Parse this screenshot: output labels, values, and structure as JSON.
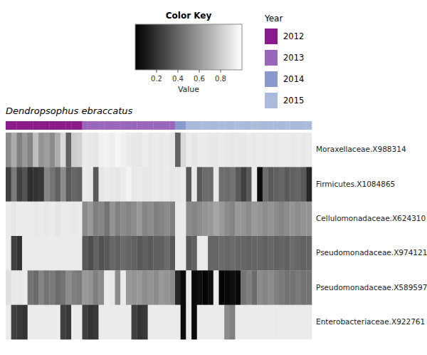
{
  "chart_data": {
    "type": "heatmap",
    "subtitle": "Dendropsophus ebraccatus",
    "rows": [
      "Moraxellaceae.X988314",
      "Firmicutes.X1084865",
      "Cellulomonadaceae.X624310",
      "Pseudomonadaceae.X974121",
      "Pseudomonadaceae.X589597",
      "Enterobacteriaceae.X922761"
    ],
    "column_groups": [
      "2012",
      "2012",
      "2012",
      "2012",
      "2012",
      "2012",
      "2012",
      "2012",
      "2012",
      "2012",
      "2012",
      "2012",
      "2012",
      "2012",
      "2013",
      "2013",
      "2013",
      "2013",
      "2013",
      "2013",
      "2013",
      "2013",
      "2013",
      "2013",
      "2013",
      "2013",
      "2013",
      "2013",
      "2013",
      "2013",
      "2013",
      "2014",
      "2014",
      "2015",
      "2015",
      "2015",
      "2015",
      "2015",
      "2015",
      "2015",
      "2015",
      "2015",
      "2015",
      "2015",
      "2015",
      "2015",
      "2015",
      "2015",
      "2015",
      "2015",
      "2015",
      "2015",
      "2015",
      "2015",
      "2015",
      "2015"
    ],
    "legend_title": "Year",
    "series": [
      {
        "name": "2012",
        "color": "#8B1A8B"
      },
      {
        "name": "2013",
        "color": "#9966BB"
      },
      {
        "name": "2014",
        "color": "#8899CC"
      },
      {
        "name": "2015",
        "color": "#AABBDD"
      }
    ],
    "values": [
      [
        0.55,
        0.68,
        0.5,
        0.6,
        0.52,
        0.75,
        0.58,
        0.62,
        0.55,
        0.68,
        0.85,
        0.38,
        0.8,
        0.82,
        0.92,
        0.91,
        0.9,
        0.94,
        0.95,
        0.93,
        0.96,
        0.94,
        0.92,
        0.91,
        0.9,
        0.93,
        0.91,
        0.92,
        0.91,
        0.92,
        0.9,
        0.38,
        0.85,
        0.92,
        0.9,
        0.92,
        0.92,
        0.91,
        0.91,
        0.92,
        0.91,
        0.9,
        0.91,
        0.91,
        0.92,
        0.91,
        0.92,
        0.91,
        0.92,
        0.91,
        0.92,
        0.92,
        0.91,
        0.92,
        0.91,
        0.92
      ],
      [
        0.25,
        0.48,
        0.25,
        0.32,
        0.18,
        0.2,
        0.22,
        0.52,
        0.45,
        0.38,
        0.55,
        0.35,
        0.4,
        0.38,
        0.92,
        0.91,
        0.35,
        0.9,
        0.92,
        0.91,
        0.9,
        0.92,
        0.95,
        0.91,
        0.92,
        0.91,
        0.91,
        0.92,
        0.91,
        0.92,
        0.9,
        0.91,
        0.92,
        0.35,
        0.92,
        0.35,
        0.42,
        0.42,
        0.91,
        0.43,
        0.42,
        0.45,
        0.35,
        0.25,
        0.35,
        0.92,
        0.05,
        0.42,
        0.35,
        0.38,
        0.4,
        0.35,
        0.38,
        0.4,
        0.35,
        0.15
      ],
      [
        0.92,
        0.9,
        0.92,
        0.92,
        0.92,
        0.91,
        0.92,
        0.91,
        0.92,
        0.9,
        0.92,
        0.92,
        0.91,
        0.92,
        0.55,
        0.6,
        0.5,
        0.52,
        0.45,
        0.58,
        0.5,
        0.55,
        0.52,
        0.55,
        0.6,
        0.52,
        0.55,
        0.5,
        0.52,
        0.55,
        0.5,
        0.92,
        0.92,
        0.55,
        0.52,
        0.55,
        0.58,
        0.6,
        0.65,
        0.6,
        0.55,
        0.52,
        0.6,
        0.58,
        0.55,
        0.6,
        0.58,
        0.55,
        0.58,
        0.55,
        0.52,
        0.55,
        0.58,
        0.55,
        0.58,
        0.58
      ],
      [
        0.92,
        0.25,
        0.2,
        0.92,
        0.92,
        0.92,
        0.92,
        0.92,
        0.92,
        0.92,
        0.92,
        0.92,
        0.92,
        0.92,
        0.35,
        0.3,
        0.38,
        0.32,
        0.35,
        0.4,
        0.38,
        0.42,
        0.4,
        0.38,
        0.35,
        0.38,
        0.35,
        0.38,
        0.38,
        0.42,
        0.35,
        0.92,
        0.92,
        0.35,
        0.38,
        0.92,
        0.92,
        0.4,
        0.4,
        0.42,
        0.4,
        0.42,
        0.4,
        0.4,
        0.38,
        0.4,
        0.4,
        0.38,
        0.4,
        0.38,
        0.4,
        0.38,
        0.42,
        0.4,
        0.38,
        0.4
      ],
      [
        0.88,
        0.91,
        0.91,
        0.92,
        0.45,
        0.42,
        0.52,
        0.45,
        0.48,
        0.42,
        0.45,
        0.55,
        0.5,
        0.48,
        0.6,
        0.58,
        0.5,
        0.55,
        0.92,
        0.9,
        0.55,
        0.92,
        0.6,
        0.58,
        0.6,
        0.55,
        0.58,
        0.55,
        0.6,
        0.58,
        0.55,
        0.15,
        0.04,
        0.92,
        0.04,
        0.06,
        0.02,
        0.05,
        0.92,
        0.02,
        0.04,
        0.06,
        0.04,
        0.45,
        0.5,
        0.42,
        0.55,
        0.52,
        0.55,
        0.5,
        0.48,
        0.45,
        0.45,
        0.48,
        0.45,
        0.45
      ],
      [
        0.92,
        0.25,
        0.22,
        0.2,
        0.92,
        0.92,
        0.92,
        0.92,
        0.92,
        0.92,
        0.25,
        0.22,
        0.92,
        0.92,
        0.25,
        0.2,
        0.22,
        0.92,
        0.92,
        0.92,
        0.92,
        0.92,
        0.92,
        0.25,
        0.2,
        0.22,
        0.92,
        0.92,
        0.92,
        0.92,
        0.92,
        0.92,
        0.04,
        0.92,
        0.04,
        0.92,
        0.92,
        0.92,
        0.92,
        0.92,
        0.55,
        0.5,
        0.92,
        0.92,
        0.92,
        0.92,
        0.92,
        0.92,
        0.92,
        0.92,
        0.92,
        0.92,
        0.92,
        0.92,
        0.92,
        0.92
      ]
    ],
    "colorbar": {
      "title": "Color Key",
      "label": "Value",
      "range": [
        0,
        1
      ],
      "ticks": [
        0.2,
        0.4,
        0.6,
        0.8
      ]
    }
  }
}
